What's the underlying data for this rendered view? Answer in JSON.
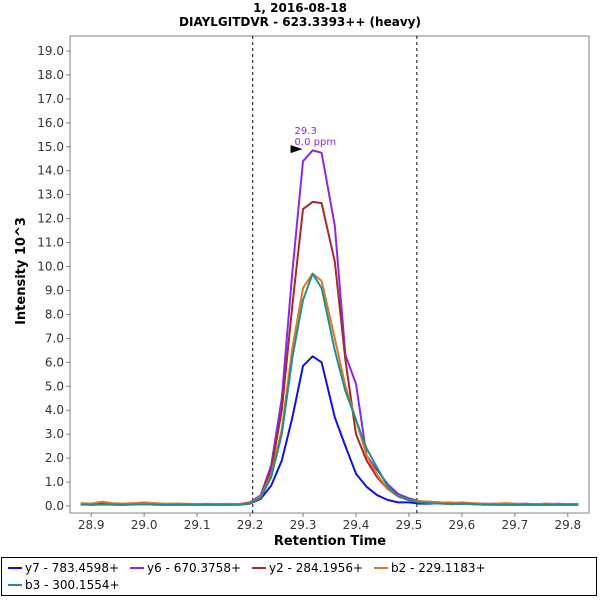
{
  "chart_data": {
    "type": "line",
    "title": "1, 2016-08-18",
    "subtitle": "DIAYLGITDVR - 623.3393++ (heavy)",
    "xlabel": "Retention Time",
    "ylabel": "Intensity 10^3",
    "xlim": [
      28.86,
      29.84
    ],
    "ylim": [
      0,
      20.0
    ],
    "xticks": [
      "28.9",
      "29.0",
      "29.1",
      "29.2",
      "29.3",
      "29.4",
      "29.5",
      "29.6",
      "29.7",
      "29.8"
    ],
    "xtick_values": [
      28.9,
      29.0,
      29.1,
      29.2,
      29.3,
      29.4,
      29.5,
      29.6,
      29.7,
      29.8
    ],
    "yticks": [
      "0.0",
      "1.0",
      "2.0",
      "3.0",
      "4.0",
      "5.0",
      "6.0",
      "7.0",
      "8.0",
      "9.0",
      "10.0",
      "11.0",
      "12.0",
      "13.0",
      "14.0",
      "15.0",
      "16.0",
      "17.0",
      "18.0",
      "19.0"
    ],
    "ytick_values": [
      0,
      1,
      2,
      3,
      4,
      5,
      6,
      7,
      8,
      9,
      10,
      11,
      12,
      13,
      14,
      15,
      16,
      17,
      18,
      19
    ],
    "boundaries": [
      29.205,
      29.515
    ],
    "peak_annotation": {
      "rt_label": "29.3",
      "ppm_label": "0.0 ppm",
      "x": 29.318,
      "y": 14.9
    },
    "grid": false,
    "legend_position": "bottom",
    "x": [
      28.88,
      28.9,
      28.92,
      28.94,
      28.96,
      28.98,
      29.0,
      29.02,
      29.04,
      29.06,
      29.08,
      29.1,
      29.12,
      29.14,
      29.16,
      29.18,
      29.2,
      29.22,
      29.24,
      29.26,
      29.28,
      29.3,
      29.318,
      29.335,
      29.36,
      29.38,
      29.4,
      29.42,
      29.44,
      29.46,
      29.48,
      29.5,
      29.52,
      29.54,
      29.56,
      29.58,
      29.6,
      29.62,
      29.64,
      29.66,
      29.68,
      29.7,
      29.72,
      29.74,
      29.76,
      29.78,
      29.8,
      29.82
    ],
    "series": [
      {
        "name": "y7 - 783.4598+",
        "color": "#1212e0",
        "values": [
          0.08,
          0.05,
          0.07,
          0.06,
          0.05,
          0.08,
          0.07,
          0.06,
          0.05,
          0.06,
          0.05,
          0.06,
          0.05,
          0.06,
          0.05,
          0.06,
          0.1,
          0.3,
          0.85,
          1.9,
          3.7,
          5.85,
          6.25,
          6.0,
          3.7,
          2.5,
          1.35,
          0.8,
          0.45,
          0.25,
          0.15,
          0.15,
          0.1,
          0.1,
          0.12,
          0.08,
          0.1,
          0.08,
          0.06,
          0.06,
          0.05,
          0.06,
          0.05,
          0.06,
          0.05,
          0.05,
          0.06,
          0.05
        ]
      },
      {
        "name": "y6 - 670.3758+",
        "color": "#8a2be2",
        "values": [
          0.08,
          0.06,
          0.1,
          0.08,
          0.06,
          0.09,
          0.1,
          0.1,
          0.07,
          0.08,
          0.08,
          0.06,
          0.08,
          0.06,
          0.07,
          0.08,
          0.15,
          0.45,
          1.7,
          4.5,
          9.8,
          14.4,
          14.85,
          14.75,
          11.7,
          6.3,
          5.1,
          2.1,
          1.5,
          0.9,
          0.5,
          0.32,
          0.2,
          0.18,
          0.15,
          0.14,
          0.12,
          0.1,
          0.1,
          0.08,
          0.1,
          0.08,
          0.1,
          0.06,
          0.08,
          0.09,
          0.08,
          0.07
        ]
      },
      {
        "name": "y2 - 284.1956+",
        "color": "#a52a2a",
        "values": [
          0.1,
          0.08,
          0.12,
          0.1,
          0.08,
          0.1,
          0.12,
          0.1,
          0.08,
          0.09,
          0.08,
          0.08,
          0.07,
          0.08,
          0.07,
          0.08,
          0.15,
          0.4,
          1.5,
          4.0,
          8.4,
          12.4,
          12.7,
          12.65,
          10.2,
          6.1,
          3.0,
          1.9,
          1.2,
          0.7,
          0.4,
          0.25,
          0.2,
          0.15,
          0.12,
          0.1,
          0.12,
          0.1,
          0.08,
          0.1,
          0.08,
          0.08,
          0.07,
          0.08,
          0.09,
          0.07,
          0.08,
          0.07
        ]
      },
      {
        "name": "b2 - 229.1183+",
        "color": "#e07820",
        "values": [
          0.12,
          0.1,
          0.18,
          0.12,
          0.1,
          0.12,
          0.15,
          0.12,
          0.1,
          0.1,
          0.09,
          0.08,
          0.1,
          0.08,
          0.09,
          0.08,
          0.12,
          0.4,
          1.3,
          3.2,
          6.6,
          9.1,
          9.7,
          9.4,
          7.0,
          5.0,
          3.6,
          2.1,
          1.3,
          0.7,
          0.4,
          0.25,
          0.2,
          0.18,
          0.15,
          0.12,
          0.15,
          0.12,
          0.1,
          0.08,
          0.12,
          0.1,
          0.08,
          0.07,
          0.1,
          0.08,
          0.07,
          0.08
        ]
      },
      {
        "name": "b3 - 300.1554+",
        "color": "#1f8f8f",
        "values": [
          0.06,
          0.05,
          0.06,
          0.06,
          0.05,
          0.06,
          0.07,
          0.06,
          0.05,
          0.05,
          0.06,
          0.05,
          0.05,
          0.06,
          0.05,
          0.05,
          0.1,
          0.35,
          1.2,
          3.0,
          6.2,
          8.6,
          9.7,
          9.1,
          6.5,
          4.8,
          3.6,
          2.4,
          1.6,
          0.8,
          0.4,
          0.25,
          0.15,
          0.12,
          0.1,
          0.08,
          0.1,
          0.08,
          0.06,
          0.06,
          0.05,
          0.06,
          0.05,
          0.05,
          0.06,
          0.05,
          0.05,
          0.06
        ]
      }
    ]
  }
}
